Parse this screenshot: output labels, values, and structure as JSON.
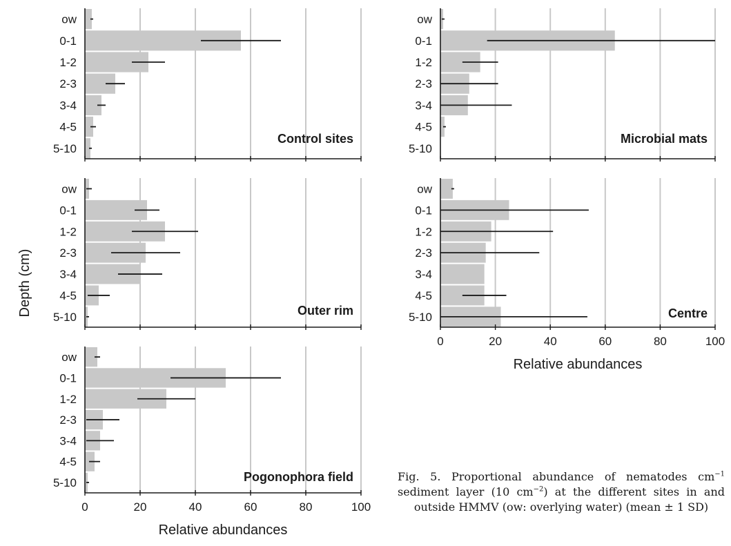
{
  "y_axis_title": "Depth (cm)",
  "x_axis_title": "Relative abundances",
  "x_ticks": [
    "0",
    "20",
    "40",
    "60",
    "80",
    "100"
  ],
  "caption": {
    "lead": "Fig. 5. Proportional abundance of nematodes cm",
    "sup1": "−1",
    "mid": " sediment layer (10 cm",
    "sup2": "−2",
    "tail": ") at the different sites in and outside HMMV (ow: overlying water) (mean ± 1 SD)"
  },
  "colors": {
    "bar": "#c8c8c8",
    "axis": "#1a1a1a",
    "grid": "#c8c8c8",
    "error": "#1a1a1a"
  },
  "chart_data": [
    {
      "type": "bar",
      "orientation": "horizontal",
      "title": "Control sites",
      "categories": [
        "ow",
        "0-1",
        "1-2",
        "2-3",
        "3-4",
        "4-5",
        "5-10"
      ],
      "values": [
        2.5,
        56.5,
        23,
        11,
        6,
        3,
        2
      ],
      "sd": [
        0.5,
        14.5,
        6,
        3.5,
        1.5,
        1,
        0.5
      ],
      "xlim": [
        0,
        100
      ],
      "grid": true
    },
    {
      "type": "bar",
      "orientation": "horizontal",
      "title": "Microbial mats",
      "categories": [
        "ow",
        "0-1",
        "1-2",
        "2-3",
        "3-4",
        "4-5",
        "5-10"
      ],
      "values": [
        1,
        63.5,
        14.5,
        10.5,
        10,
        1.5,
        0
      ],
      "sd": [
        0.5,
        46.5,
        6.5,
        10.5,
        16,
        0.5,
        0
      ],
      "xlim": [
        0,
        100
      ],
      "grid": true
    },
    {
      "type": "bar",
      "orientation": "horizontal",
      "title": "Outer rim",
      "categories": [
        "ow",
        "0-1",
        "1-2",
        "2-3",
        "3-4",
        "4-5",
        "5-10"
      ],
      "values": [
        1.5,
        22.5,
        29,
        22,
        20,
        5,
        1
      ],
      "sd": [
        1,
        4.5,
        12,
        12.5,
        8,
        4,
        0.5
      ],
      "xlim": [
        0,
        100
      ],
      "grid": true
    },
    {
      "type": "bar",
      "orientation": "horizontal",
      "title": "Centre",
      "categories": [
        "ow",
        "0-1",
        "1-2",
        "2-3",
        "3-4",
        "4-5",
        "5-10"
      ],
      "values": [
        4.5,
        25,
        18.5,
        16.5,
        16,
        16,
        22
      ],
      "sd": [
        0.5,
        29,
        22.5,
        19.5,
        0,
        8,
        31.5
      ],
      "xlim": [
        0,
        100
      ],
      "grid": true
    },
    {
      "type": "bar",
      "orientation": "horizontal",
      "title": "Pogonophora field",
      "categories": [
        "ow",
        "0-1",
        "1-2",
        "2-3",
        "3-4",
        "4-5",
        "5-10"
      ],
      "values": [
        4.5,
        51,
        29.5,
        6.5,
        5.5,
        3.5,
        1
      ],
      "sd": [
        1,
        20,
        10.5,
        6,
        5,
        2,
        0.5
      ],
      "xlim": [
        0,
        100
      ],
      "grid": true
    }
  ]
}
